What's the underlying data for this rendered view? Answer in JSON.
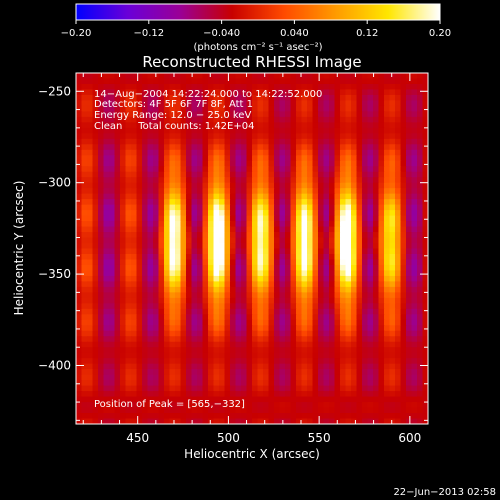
{
  "chart_data": {
    "type": "heatmap",
    "title": "Reconstructed RHESSI Image",
    "xlabel": "Heliocentric X (arcsec)",
    "ylabel": "Heliocentric Y (arcsec)",
    "xlim": [
      416,
      610
    ],
    "ylim": [
      -432,
      -240
    ],
    "x_ticks": [
      450,
      500,
      550,
      600
    ],
    "x_tick_labels": [
      "450",
      "500",
      "550",
      "600"
    ],
    "y_ticks": [
      -250,
      -300,
      -350,
      -400
    ],
    "y_tick_labels": [
      "−250",
      "−300",
      "−350",
      "−400"
    ],
    "colorbar": {
      "range": [
        -0.2,
        0.2
      ],
      "ticks": [
        -0.2,
        -0.12,
        -0.04,
        0.04,
        0.12,
        0.2
      ],
      "tick_labels": [
        "−0.20",
        "−0.12",
        "−0.040",
        "0.040",
        "0.12",
        "0.20"
      ],
      "unit_label": "(photons cm⁻² s⁻¹ asec⁻²)",
      "colors": [
        "#0000ff",
        "#6a00d8",
        "#9a0096",
        "#c80000",
        "#ff4a00",
        "#ff9b00",
        "#ffe600",
        "#ffffff"
      ]
    },
    "annotations": [
      "14−Aug−2004 14:22:24.000 to 14:22:52.000",
      "Detectors: 4F 5F 6F 7F 8F, Att 1",
      "Energy Range: 12.0 − 25.0 keV",
      "Clean     Total counts: 1.42E+04",
      "Position of Peak = [565,−332]"
    ],
    "peak": [
      565,
      -332
    ],
    "stripe_centers_x": [
      470,
      494,
      518,
      542,
      565,
      589
    ]
  },
  "footer": {
    "timestamp": "22−Jun−2013 02:58"
  }
}
